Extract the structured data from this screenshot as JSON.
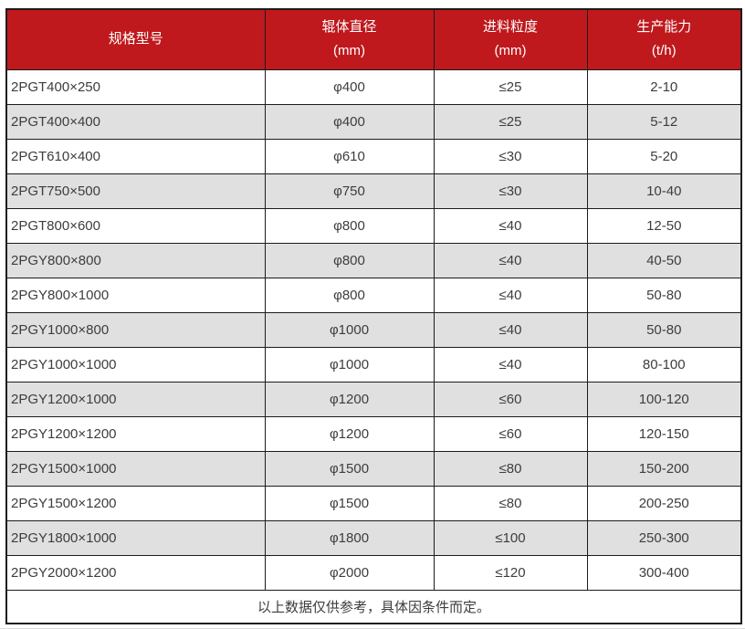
{
  "table": {
    "headers": [
      {
        "title": "规格型号",
        "unit": ""
      },
      {
        "title": "辊体直径",
        "unit": "(mm)"
      },
      {
        "title": "进料粒度",
        "unit": "(mm)"
      },
      {
        "title": "生产能力",
        "unit": "(t/h)"
      }
    ],
    "rows": [
      [
        "2PGT400×250",
        "φ400",
        "≤25",
        "2-10"
      ],
      [
        "2PGT400×400",
        "φ400",
        "≤25",
        "5-12"
      ],
      [
        "2PGT610×400",
        "φ610",
        "≤30",
        "5-20"
      ],
      [
        "2PGT750×500",
        "φ750",
        "≤30",
        "10-40"
      ],
      [
        "2PGT800×600",
        "φ800",
        "≤40",
        "12-50"
      ],
      [
        "2PGY800×800",
        "φ800",
        "≤40",
        "40-50"
      ],
      [
        "2PGY800×1000",
        "φ800",
        "≤40",
        "50-80"
      ],
      [
        "2PGY1000×800",
        "φ1000",
        "≤40",
        "50-80"
      ],
      [
        "2PGY1000×1000",
        "φ1000",
        "≤40",
        "80-100"
      ],
      [
        "2PGY1200×1000",
        "φ1200",
        "≤60",
        "100-120"
      ],
      [
        "2PGY1200×1200",
        "φ1200",
        "≤60",
        "120-150"
      ],
      [
        "2PGY1500×1000",
        "φ1500",
        "≤80",
        "150-200"
      ],
      [
        "2PGY1500×1200",
        "φ1500",
        "≤80",
        "200-250"
      ],
      [
        "2PGY1800×1000",
        "φ1800",
        "≤100",
        "250-300"
      ],
      [
        "2PGY2000×1200",
        "φ2000",
        "≤120",
        "300-400"
      ]
    ],
    "footer_note": "以上数据仅供参考，具体因条件而定。"
  },
  "chart_data": {
    "type": "table",
    "title": "",
    "columns": [
      "规格型号",
      "辊体直径 (mm)",
      "进料粒度 (mm)",
      "生产能力 (t/h)"
    ],
    "rows": [
      [
        "2PGT400×250",
        "φ400",
        "≤25",
        "2-10"
      ],
      [
        "2PGT400×400",
        "φ400",
        "≤25",
        "5-12"
      ],
      [
        "2PGT610×400",
        "φ610",
        "≤30",
        "5-20"
      ],
      [
        "2PGT750×500",
        "φ750",
        "≤30",
        "10-40"
      ],
      [
        "2PGT800×600",
        "φ800",
        "≤40",
        "12-50"
      ],
      [
        "2PGY800×800",
        "φ800",
        "≤40",
        "40-50"
      ],
      [
        "2PGY800×1000",
        "φ800",
        "≤40",
        "50-80"
      ],
      [
        "2PGY1000×800",
        "φ1000",
        "≤40",
        "50-80"
      ],
      [
        "2PGY1000×1000",
        "φ1000",
        "≤40",
        "80-100"
      ],
      [
        "2PGY1200×1000",
        "φ1200",
        "≤60",
        "100-120"
      ],
      [
        "2PGY1200×1200",
        "φ1200",
        "≤60",
        "120-150"
      ],
      [
        "2PGY1500×1000",
        "φ1500",
        "≤80",
        "150-200"
      ],
      [
        "2PGY1500×1200",
        "φ1500",
        "≤80",
        "200-250"
      ],
      [
        "2PGY1800×1000",
        "φ1800",
        "≤100",
        "250-300"
      ],
      [
        "2PGY2000×1200",
        "φ2000",
        "≤120",
        "300-400"
      ]
    ],
    "footnote": "以上数据仅供参考，具体因条件而定。"
  },
  "colors": {
    "header_bg": "#bf191d",
    "header_text": "#ffffff",
    "stripe_bg": "#e0e0e0",
    "border": "#1c1c1c",
    "text": "#3d3d3d"
  }
}
